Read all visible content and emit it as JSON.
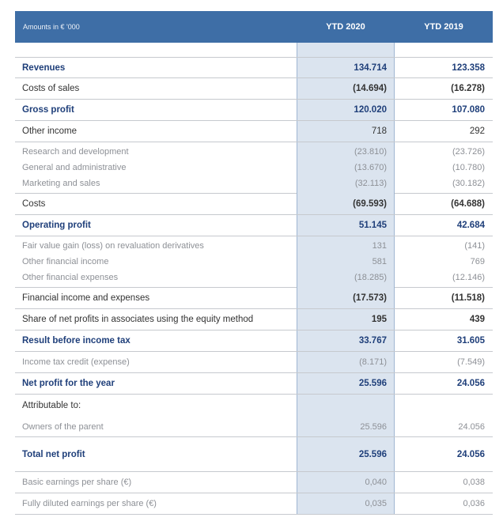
{
  "header": {
    "amounts_label": "Amounts in € '000",
    "col_2020": "YTD 2020",
    "col_2019": "YTD 2019"
  },
  "rows": {
    "revenues": {
      "label": "Revenues",
      "y2020": "134.714",
      "y2019": "123.358"
    },
    "cost_of_sales": {
      "label": "Costs of sales",
      "y2020": "(14.694)",
      "y2019": "(16.278)"
    },
    "gross_profit": {
      "label": "Gross profit",
      "y2020": "120.020",
      "y2019": "107.080"
    },
    "other_income": {
      "label": "Other income",
      "y2020": "718",
      "y2019": "292"
    },
    "rnd": {
      "label": "Research and development",
      "y2020": "(23.810)",
      "y2019": "(23.726)"
    },
    "gna": {
      "label": "General and administrative",
      "y2020": "(13.670)",
      "y2019": "(10.780)"
    },
    "mns": {
      "label": "Marketing and sales",
      "y2020": "(32.113)",
      "y2019": "(30.182)"
    },
    "costs": {
      "label": "Costs",
      "y2020": "(69.593)",
      "y2019": "(64.688)"
    },
    "operating_profit": {
      "label": "Operating profit",
      "y2020": "51.145",
      "y2019": "42.684"
    },
    "fair_value": {
      "label": "Fair value gain (loss) on revaluation derivatives",
      "y2020": "131",
      "y2019": "(141)"
    },
    "other_fin_income": {
      "label": "Other financial income",
      "y2020": "581",
      "y2019": "769"
    },
    "other_fin_exp": {
      "label": "Other financial expenses",
      "y2020": "(18.285)",
      "y2019": "(12.146)"
    },
    "fin_income_exp": {
      "label": "Financial income and expenses",
      "y2020": "(17.573)",
      "y2019": "(11.518)"
    },
    "share_associates": {
      "label": "Share of net profits in associates using the equity method",
      "y2020": "195",
      "y2019": "439"
    },
    "result_before_tax": {
      "label": "Result before income tax",
      "y2020": "33.767",
      "y2019": "31.605"
    },
    "income_tax": {
      "label": "Income tax credit (expense)",
      "y2020": "(8.171)",
      "y2019": "(7.549)"
    },
    "net_profit": {
      "label": "Net profit for the year",
      "y2020": "25.596",
      "y2019": "24.056"
    },
    "attributable": {
      "label": "Attributable to:"
    },
    "owners_parent": {
      "label": "Owners of the parent",
      "y2020": "25.596",
      "y2019": "24.056"
    },
    "total_net_profit": {
      "label": "Total net profit",
      "y2020": "25.596",
      "y2019": "24.056"
    },
    "basic_eps": {
      "label": "Basic earnings per share (€)",
      "y2020": "0,040",
      "y2019": "0,038"
    },
    "diluted_eps": {
      "label": "Fully diluted earnings per share (€)",
      "y2020": "0,035",
      "y2019": "0,036"
    }
  }
}
